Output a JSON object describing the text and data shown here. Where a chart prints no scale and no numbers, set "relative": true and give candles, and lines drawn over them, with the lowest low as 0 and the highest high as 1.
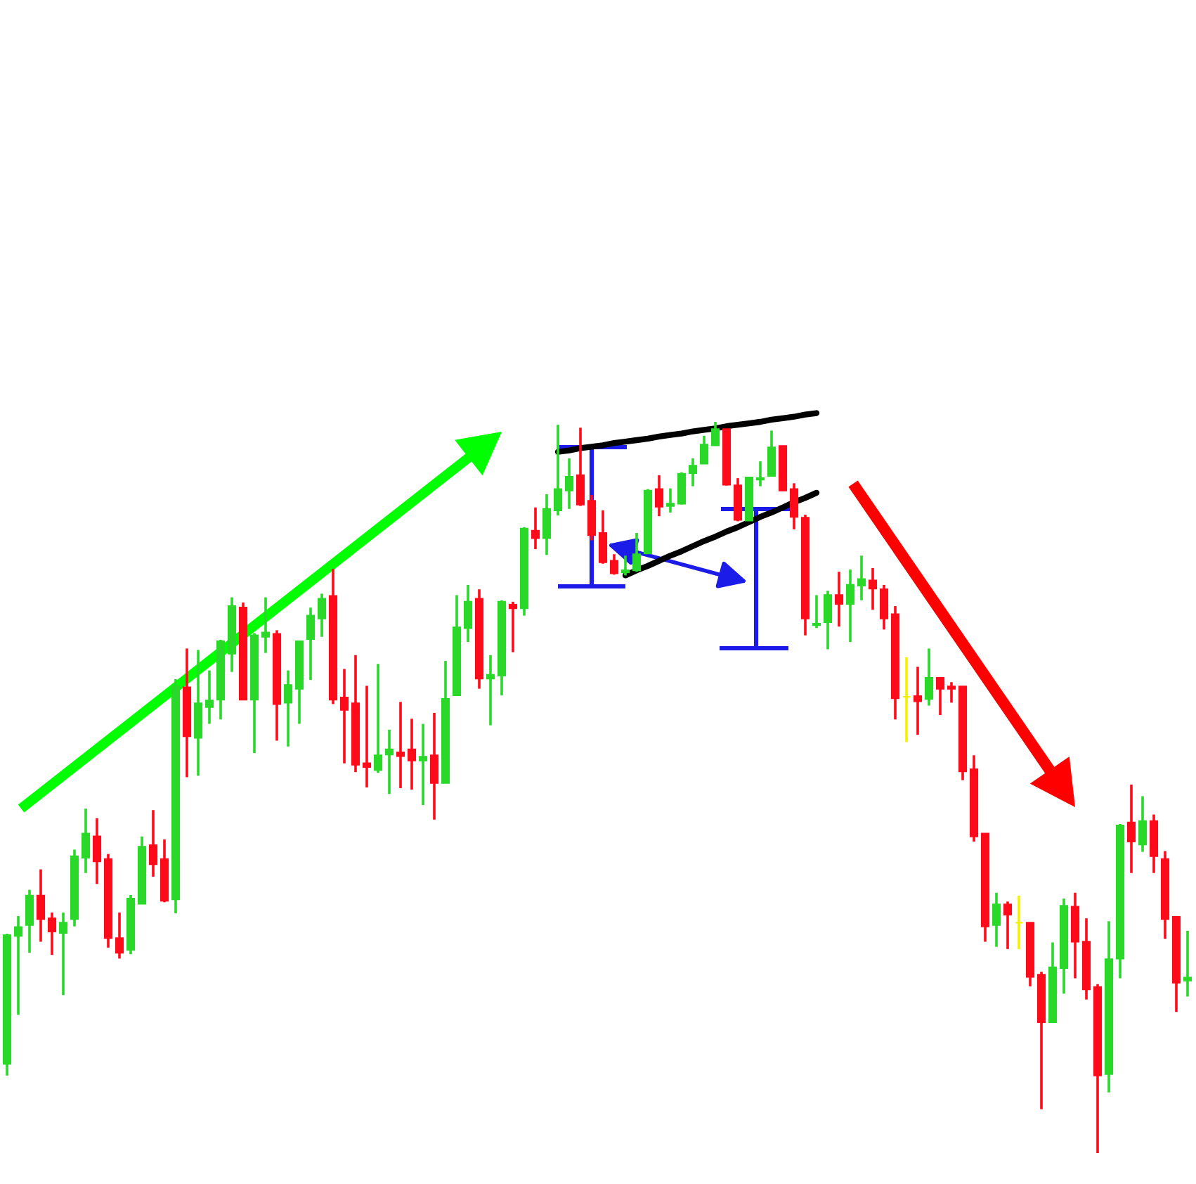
{
  "chart_data": {
    "type": "candlestick",
    "relative": true,
    "categories": [
      null,
      null,
      null,
      null,
      null,
      null,
      null,
      null,
      null,
      null,
      null,
      null,
      null,
      null,
      null,
      null,
      null,
      null,
      null,
      null,
      null,
      null,
      null,
      null,
      null,
      null,
      null,
      null,
      null,
      null,
      null,
      null,
      null,
      null,
      null,
      null,
      null,
      null,
      null,
      null,
      null,
      null,
      null,
      null,
      null,
      null,
      null,
      null,
      null,
      null,
      null,
      null,
      null,
      null,
      null,
      null,
      null,
      null,
      null,
      null,
      null,
      null,
      null,
      null,
      null,
      null,
      null,
      null,
      null,
      null,
      null,
      null,
      null,
      null,
      null,
      null,
      null,
      null,
      null,
      null,
      null,
      null,
      null,
      null,
      null,
      null,
      null,
      null,
      null,
      null,
      null,
      null,
      null,
      null,
      null,
      null,
      null,
      null,
      null,
      null,
      null,
      null,
      null,
      null,
      null,
      null
    ],
    "ohlc": [
      [
        0.122,
        0.3,
        0.106,
        0.298
      ],
      [
        0.297,
        0.324,
        0.189,
        0.309
      ],
      [
        0.312,
        0.36,
        0.274,
        0.352
      ],
      [
        0.352,
        0.388,
        0.289,
        0.32
      ],
      [
        0.321,
        0.329,
        0.271,
        0.303
      ],
      [
        0.301,
        0.329,
        0.216,
        0.315
      ],
      [
        0.32,
        0.415,
        0.31,
        0.406
      ],
      [
        0.404,
        0.471,
        0.383,
        0.437
      ],
      [
        0.433,
        0.458,
        0.368,
        0.399
      ],
      [
        0.402,
        0.409,
        0.281,
        0.294
      ],
      [
        0.294,
        0.329,
        0.266,
        0.274
      ],
      [
        0.278,
        0.353,
        0.272,
        0.348
      ],
      [
        0.341,
        0.433,
        0.341,
        0.419
      ],
      [
        0.421,
        0.469,
        0.378,
        0.395
      ],
      [
        0.402,
        0.429,
        0.343,
        0.345
      ],
      [
        0.347,
        0.648,
        0.328,
        0.638
      ],
      [
        0.637,
        0.69,
        0.514,
        0.57
      ],
      [
        0.568,
        0.688,
        0.516,
        0.615
      ],
      [
        0.61,
        0.66,
        0.587,
        0.619
      ],
      [
        0.62,
        0.702,
        0.593,
        0.7
      ],
      [
        0.683,
        0.76,
        0.658,
        0.748
      ],
      [
        0.746,
        0.753,
        0.62,
        0.62
      ],
      [
        0.62,
        0.711,
        0.547,
        0.708
      ],
      [
        0.706,
        0.76,
        0.684,
        0.712
      ],
      [
        0.71,
        0.715,
        0.564,
        0.614
      ],
      [
        0.616,
        0.66,
        0.556,
        0.64
      ],
      [
        0.635,
        0.7,
        0.587,
        0.7
      ],
      [
        0.703,
        0.746,
        0.647,
        0.735
      ],
      [
        0.731,
        0.765,
        0.706,
        0.758
      ],
      [
        0.762,
        0.799,
        0.614,
        0.62
      ],
      [
        0.623,
        0.662,
        0.533,
        0.606
      ],
      [
        0.615,
        0.681,
        0.521,
        0.531
      ],
      [
        0.533,
        0.639,
        0.5,
        0.528
      ],
      [
        0.524,
        0.669,
        0.52,
        0.544
      ],
      [
        0.545,
        0.579,
        0.491,
        0.552
      ],
      [
        0.548,
        0.617,
        0.499,
        0.543
      ],
      [
        0.552,
        0.594,
        0.497,
        0.537
      ],
      [
        0.537,
        0.587,
        0.476,
        0.542
      ],
      [
        0.544,
        0.602,
        0.456,
        0.506
      ],
      [
        0.506,
        0.673,
        0.506,
        0.621
      ],
      [
        0.626,
        0.763,
        0.626,
        0.719
      ],
      [
        0.718,
        0.777,
        0.699,
        0.754
      ],
      [
        0.758,
        0.771,
        0.635,
        0.649
      ],
      [
        0.649,
        0.681,
        0.585,
        0.654
      ],
      [
        0.653,
        0.756,
        0.626,
        0.754
      ],
      [
        0.75,
        0.754,
        0.685,
        0.745
      ],
      [
        0.745,
        0.856,
        0.735,
        0.854
      ],
      [
        0.851,
        0.883,
        0.826,
        0.841
      ],
      [
        0.841,
        0.901,
        0.818,
        0.881
      ],
      [
        0.879,
        0.996,
        0.872,
        0.908
      ],
      [
        0.906,
        0.95,
        0.881,
        0.925
      ],
      [
        0.927,
        0.992,
        0.885,
        0.887
      ],
      [
        0.892,
        0.9,
        0.838,
        0.845
      ],
      [
        0.848,
        0.879,
        0.806,
        0.808
      ],
      [
        0.81,
        0.819,
        0.791,
        0.793
      ],
      [
        0.794,
        0.817,
        0.79,
        0.797
      ],
      [
        0.797,
        0.848,
        0.795,
        0.819
      ],
      [
        0.82,
        0.908,
        0.82,
        0.906
      ],
      [
        0.908,
        0.927,
        0.871,
        0.884
      ],
      [
        0.885,
        0.909,
        0.876,
        0.888
      ],
      [
        0.888,
        0.931,
        0.887,
        0.929
      ],
      [
        0.93,
        0.95,
        0.912,
        0.94
      ],
      [
        0.943,
        0.981,
        0.943,
        0.969
      ],
      [
        0.968,
        1.0,
        0.968,
        0.99
      ],
      [
        0.99,
        0.99,
        0.913,
        0.914
      ],
      [
        0.913,
        0.923,
        0.864,
        0.866
      ],
      [
        0.865,
        0.924,
        0.865,
        0.924
      ],
      [
        0.921,
        0.946,
        0.912,
        0.923
      ],
      [
        0.926,
        0.988,
        0.926,
        0.965
      ],
      [
        0.967,
        0.967,
        0.906,
        0.906
      ],
      [
        0.908,
        0.916,
        0.853,
        0.87
      ],
      [
        0.869,
        0.873,
        0.708,
        0.731
      ],
      [
        0.722,
        0.763,
        0.718,
        0.724
      ],
      [
        0.726,
        0.769,
        0.689,
        0.763
      ],
      [
        0.763,
        0.795,
        0.72,
        0.751
      ],
      [
        0.751,
        0.798,
        0.699,
        0.777
      ],
      [
        0.776,
        0.817,
        0.756,
        0.785
      ],
      [
        0.783,
        0.8,
        0.743,
        0.772
      ],
      [
        0.771,
        0.777,
        0.716,
        0.731
      ],
      [
        0.737,
        0.748,
        0.593,
        0.622
      ],
      [
        0.624,
        0.678,
        0.562,
        0.624
      ],
      [
        0.625,
        0.665,
        0.572,
        0.618
      ],
      [
        0.621,
        0.69,
        0.612,
        0.65
      ],
      [
        0.65,
        0.65,
        0.599,
        0.635
      ],
      [
        0.638,
        0.644,
        0.616,
        0.635
      ],
      [
        0.638,
        0.638,
        0.51,
        0.522
      ],
      [
        0.525,
        0.544,
        0.426,
        0.433
      ],
      [
        0.437,
        0.437,
        0.289,
        0.31
      ],
      [
        0.312,
        0.356,
        0.282,
        0.34
      ],
      [
        0.34,
        0.344,
        0.279,
        0.326
      ],
      [
        0.315,
        0.352,
        0.279,
        0.315
      ],
      [
        0.315,
        0.315,
        0.228,
        0.241
      ],
      [
        0.244,
        0.248,
        0.06,
        0.179
      ],
      [
        0.179,
        0.288,
        0.179,
        0.254
      ],
      [
        0.253,
        0.348,
        0.218,
        0.338
      ],
      [
        0.337,
        0.356,
        0.239,
        0.289
      ],
      [
        0.289,
        0.321,
        0.21,
        0.224
      ],
      [
        0.227,
        0.231,
        0.0,
        0.106
      ],
      [
        0.108,
        0.317,
        0.083,
        0.265
      ],
      [
        0.266,
        0.45,
        0.239,
        0.448
      ],
      [
        0.452,
        0.504,
        0.383,
        0.426
      ],
      [
        0.422,
        0.488,
        0.412,
        0.454
      ],
      [
        0.454,
        0.463,
        0.383,
        0.406
      ],
      [
        0.402,
        0.413,
        0.293,
        0.32
      ],
      [
        0.323,
        0.323,
        0.193,
        0.233
      ],
      [
        0.236,
        0.304,
        0.214,
        0.24
      ]
    ],
    "colors": [
      "#2ad82a",
      "#2ad82a",
      "#2ad82a",
      "#ff0a1a",
      "#ff0a1a",
      "#2ad82a",
      "#2ad82a",
      "#2ad82a",
      "#ff0a1a",
      "#ff0a1a",
      "#ff0a1a",
      "#2ad82a",
      "#2ad82a",
      "#ff0a1a",
      "#ff0a1a",
      "#2ad82a",
      "#ff0a1a",
      "#2ad82a",
      "#2ad82a",
      "#2ad82a",
      "#2ad82a",
      "#ff0a1a",
      "#2ad82a",
      "#2ad82a",
      "#ff0a1a",
      "#2ad82a",
      "#2ad82a",
      "#2ad82a",
      "#2ad82a",
      "#ff0a1a",
      "#ff0a1a",
      "#ff0a1a",
      "#ff0a1a",
      "#2ad82a",
      "#2ad82a",
      "#ff0a1a",
      "#ff0a1a",
      "#2ad82a",
      "#ff0a1a",
      "#2ad82a",
      "#2ad82a",
      "#2ad82a",
      "#ff0a1a",
      "#2ad82a",
      "#2ad82a",
      "#ff0a1a",
      "#2ad82a",
      "#ff0a1a",
      "#2ad82a",
      "#2ad82a",
      "#2ad82a",
      "#ff0a1a",
      "#ff0a1a",
      "#ff0a1a",
      "#ff0a1a",
      "#2ad82a",
      "#2ad82a",
      "#2ad82a",
      "#ff0a1a",
      "#2ad82a",
      "#2ad82a",
      "#2ad82a",
      "#2ad82a",
      "#2ad82a",
      "#ff0a1a",
      "#ff0a1a",
      "#2ad82a",
      "#2ad82a",
      "#2ad82a",
      "#ff0a1a",
      "#ff0a1a",
      "#ff0a1a",
      "#2ad82a",
      "#2ad82a",
      "#ff0a1a",
      "#2ad82a",
      "#2ad82a",
      "#ff0a1a",
      "#ff0a1a",
      "#ff0a1a",
      "#f2f200",
      "#ff0a1a",
      "#2ad82a",
      "#ff0a1a",
      "#ff0a1a",
      "#ff0a1a",
      "#ff0a1a",
      "#ff0a1a",
      "#2ad82a",
      "#ff0a1a",
      "#f2f200",
      "#ff0a1a",
      "#ff0a1a",
      "#2ad82a",
      "#2ad82a",
      "#ff0a1a",
      "#ff0a1a",
      "#ff0a1a",
      "#2ad82a",
      "#2ad82a",
      "#ff0a1a",
      "#2ad82a",
      "#ff0a1a",
      "#ff0a1a",
      "#ff0a1a",
      "#2ad82a"
    ],
    "series": [
      {
        "type": "line",
        "color": "#000000",
        "values": [
          null,
          null,
          null,
          null,
          null,
          null,
          null,
          null,
          null,
          null,
          null,
          null,
          null,
          null,
          null,
          null,
          null,
          null,
          null,
          null,
          null,
          null,
          null,
          null,
          null,
          null,
          null,
          null,
          null,
          null,
          null,
          null,
          null,
          null,
          null,
          null,
          null,
          null,
          null,
          null,
          null,
          null,
          null,
          null,
          null,
          null,
          null,
          null,
          null,
          0.959,
          0.961,
          0.964,
          0.966,
          0.968,
          0.971,
          0.973,
          0.975,
          0.977,
          0.98,
          0.982,
          0.984,
          0.987,
          0.989,
          0.991,
          0.994,
          0.996,
          0.998,
          1.0,
          1.003,
          1.005,
          1.007,
          1.01,
          1.012,
          null,
          null,
          null,
          null,
          null,
          null,
          null,
          null,
          null,
          null,
          null,
          null,
          null,
          null,
          null,
          null,
          null,
          null,
          null,
          null,
          null,
          null,
          null,
          null,
          null,
          null,
          null,
          null,
          null,
          null,
          null,
          null,
          null
        ]
      },
      {
        "type": "line",
        "color": "#000000",
        "values": [
          null,
          null,
          null,
          null,
          null,
          null,
          null,
          null,
          null,
          null,
          null,
          null,
          null,
          null,
          null,
          null,
          null,
          null,
          null,
          null,
          null,
          null,
          null,
          null,
          null,
          null,
          null,
          null,
          null,
          null,
          null,
          null,
          null,
          null,
          null,
          null,
          null,
          null,
          null,
          null,
          null,
          null,
          null,
          null,
          null,
          null,
          null,
          null,
          null,
          null,
          null,
          null,
          null,
          null,
          null,
          0.79,
          0.797,
          0.803,
          0.81,
          0.817,
          0.823,
          0.83,
          0.837,
          0.843,
          0.85,
          0.856,
          0.863,
          0.87,
          0.876,
          0.883,
          0.89,
          0.896,
          0.903,
          null,
          null,
          null,
          null,
          null,
          null,
          null,
          null,
          null,
          null,
          null,
          null,
          null,
          null,
          null,
          null,
          null,
          null,
          null,
          null,
          null,
          null,
          null,
          null,
          null,
          null,
          null,
          null,
          null,
          null,
          null,
          null,
          null
        ]
      }
    ]
  }
}
